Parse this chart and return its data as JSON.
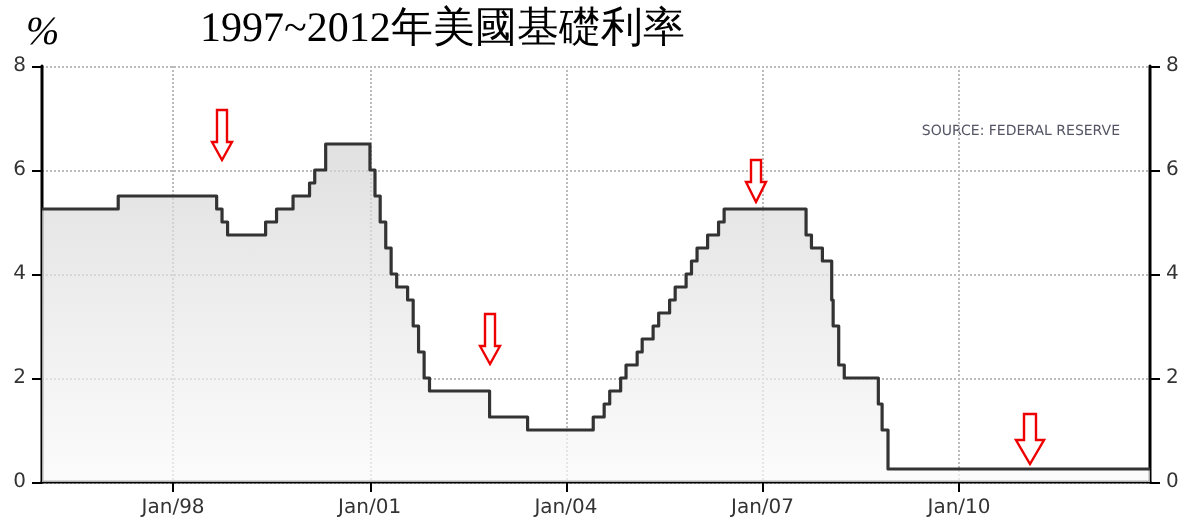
{
  "chart_data": {
    "type": "area",
    "title": "1997~2012年美國基礎利率",
    "ylabel": "%",
    "annotations": [
      "SOURCE: FEDERAL RESERVE"
    ],
    "x": [
      "1996-01",
      "1997-03",
      "1997-03",
      "1998-09",
      "1998-09",
      "1998-10",
      "1998-10",
      "1998-11",
      "1998-11",
      "1999-06",
      "1999-06",
      "1999-08",
      "1999-08",
      "1999-11",
      "1999-11",
      "2000-02",
      "2000-02",
      "2000-03",
      "2000-03",
      "2000-05",
      "2000-05",
      "2001-01-03",
      "2001-01-03",
      "2001-01-31",
      "2001-01-31",
      "2001-03",
      "2001-03",
      "2001-04",
      "2001-04",
      "2001-05",
      "2001-05",
      "2001-06",
      "2001-06",
      "2001-08",
      "2001-08",
      "2001-09",
      "2001-09",
      "2001-10",
      "2001-10",
      "2001-11",
      "2001-11",
      "2001-12",
      "2001-12",
      "2002-11",
      "2002-11",
      "2003-06",
      "2003-06",
      "2004-06",
      "2004-06",
      "2004-08",
      "2004-08",
      "2004-09",
      "2004-09",
      "2004-11",
      "2004-11",
      "2004-12",
      "2004-12",
      "2005-02",
      "2005-02",
      "2005-03",
      "2005-03",
      "2005-05",
      "2005-05",
      "2005-06",
      "2005-06",
      "2005-08",
      "2005-08",
      "2005-09",
      "2005-09",
      "2005-11",
      "2005-11",
      "2005-12",
      "2005-12",
      "2006-01",
      "2006-01",
      "2006-03",
      "2006-03",
      "2006-05",
      "2006-05",
      "2006-06",
      "2006-06",
      "2007-09",
      "2007-09",
      "2007-10",
      "2007-10",
      "2007-12",
      "2007-12",
      "2008-01-22",
      "2008-01-22",
      "2008-01-30",
      "2008-01-30",
      "2008-03",
      "2008-03",
      "2008-04",
      "2008-04",
      "2008-10-08",
      "2008-10-08",
      "2008-10-29",
      "2008-10-29",
      "2008-12",
      "2008-12",
      "2012-12"
    ],
    "series": [
      {
        "color": "#333333",
        "values": [
          5.25,
          5.25,
          5.5,
          5.5,
          5.25,
          5.25,
          5.0,
          5.0,
          4.75,
          4.75,
          5.0,
          5.0,
          5.25,
          5.25,
          5.5,
          5.5,
          5.75,
          5.75,
          6.0,
          6.0,
          6.5,
          6.5,
          6.0,
          6.0,
          5.5,
          5.5,
          5.0,
          5.0,
          4.5,
          4.5,
          4.0,
          4.0,
          3.75,
          3.75,
          3.5,
          3.5,
          3.0,
          3.0,
          2.5,
          2.5,
          2.0,
          2.0,
          1.75,
          1.75,
          1.25,
          1.25,
          1.0,
          1.0,
          1.25,
          1.25,
          1.5,
          1.5,
          1.75,
          1.75,
          2.0,
          2.0,
          2.25,
          2.25,
          2.5,
          2.5,
          2.75,
          2.75,
          3.0,
          3.0,
          3.25,
          3.25,
          3.5,
          3.5,
          3.75,
          3.75,
          4.0,
          4.0,
          4.25,
          4.25,
          4.5,
          4.5,
          4.75,
          4.75,
          5.0,
          5.0,
          5.25,
          5.25,
          4.75,
          4.75,
          4.5,
          4.5,
          4.25,
          4.25,
          3.5,
          3.5,
          3.0,
          3.0,
          2.25,
          2.25,
          2.0,
          2.0,
          1.5,
          1.5,
          1.0,
          1.0,
          0.25,
          0.25
        ]
      }
    ],
    "xlim": [
      "1996-01",
      "2012-12"
    ],
    "xticks": [
      {
        "value": "1998-01",
        "label": "Jan/98"
      },
      {
        "value": "2001-01",
        "label": "Jan/01"
      },
      {
        "value": "2004-01",
        "label": "Jan/04"
      },
      {
        "value": "2007-01",
        "label": "Jan/07"
      },
      {
        "value": "2010-01",
        "label": "Jan/10"
      }
    ],
    "ylim": [
      0,
      8
    ],
    "yticks": [
      0,
      2,
      4,
      6,
      8
    ],
    "y2lim": [
      0,
      8
    ],
    "y2ticks": [
      0,
      2,
      4,
      6,
      8
    ],
    "grid": true,
    "marker": "none",
    "line_style": "solid"
  }
}
